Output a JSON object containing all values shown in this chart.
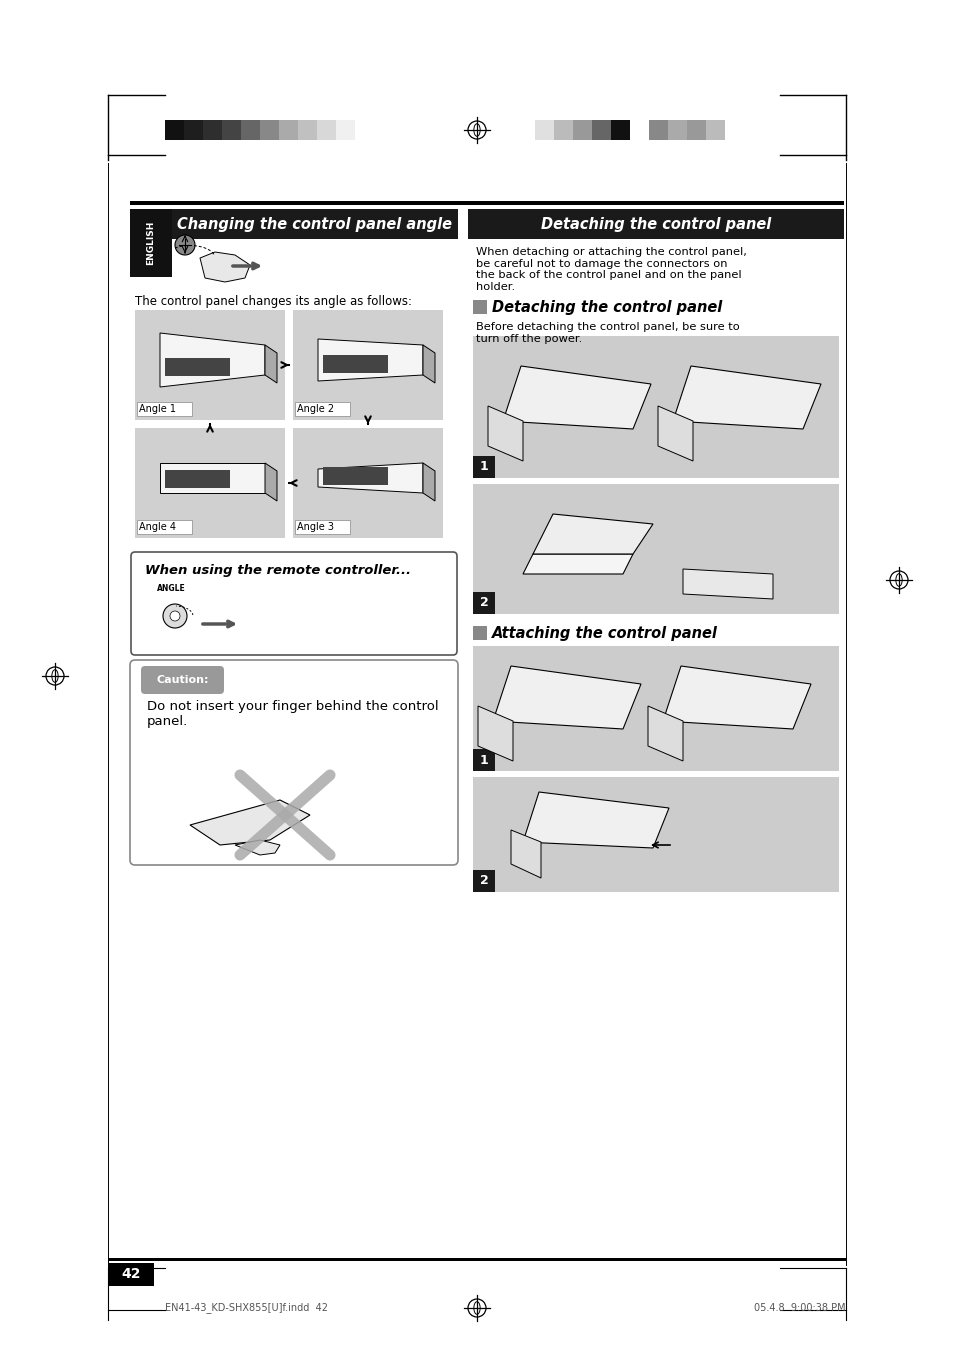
{
  "bg_color": "#ffffff",
  "page_number": "42",
  "footer_left": "EN41-43_KD-SHX855[U]f.indd  42",
  "footer_right": "05.4.8  9:00:38 PM",
  "left_section_title": "Changing the control panel angle",
  "right_section_title": "Detaching the control panel",
  "english_label": "ENGLISH",
  "intro_text": "The control panel changes its angle as follows:",
  "angle_labels": [
    "Angle 1",
    "Angle 2",
    "Angle 3",
    "Angle 4"
  ],
  "remote_box_title": "When using the remote controller...",
  "caution_label": "Caution:",
  "caution_text": "Do not insert your finger behind the control\npanel.",
  "right_intro": "When detaching or attaching the control panel,\nbe careful not to damage the connectors on\nthe back of the control panel and on the panel\nholder.",
  "detach_section_title": "Detaching the control panel",
  "detach_pre_text": "Before detaching the control panel, be sure to\nturn off the power.",
  "attach_section_title": "Attaching the control panel",
  "gray_box": "#cccccc",
  "dark_bar": "#333333",
  "title_bg": "#1a1a1a",
  "step_bg": "#1a1a1a",
  "caution_pill_bg": "#999999",
  "border_color": "#888888",
  "english_bg": "#111111",
  "angle_box_bg": "#d0d0d0",
  "header_bar_colors_left": [
    "#111111",
    "#1e1e1e",
    "#2e2e2e",
    "#444444",
    "#666666",
    "#888888",
    "#aaaaaa",
    "#c0c0c0",
    "#d8d8d8",
    "#f0f0f0"
  ],
  "header_bar_colors_right": [
    "#e0e0e0",
    "#bbbbbb",
    "#999999",
    "#666666",
    "#111111",
    "#ffffff",
    "#888888",
    "#aaaaaa",
    "#999999",
    "#bbbbbb"
  ]
}
